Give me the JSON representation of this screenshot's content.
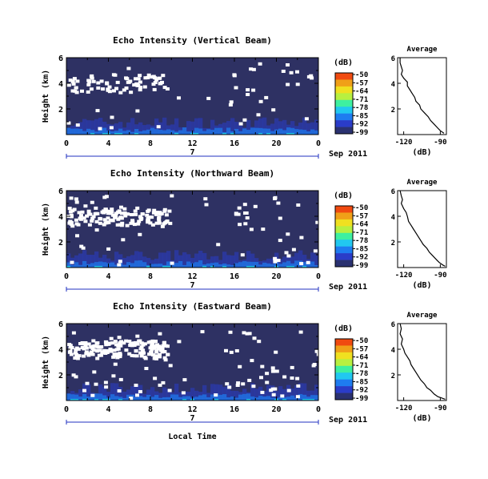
{
  "panels": [
    {
      "title": "Echo Intensity (Vertical Beam)",
      "ylabel": "Height (km)",
      "cbar_title": "(dB)",
      "avg_title": "Average",
      "avg_xlabel": "(dB)",
      "date_label": "Sep 2011",
      "day_label": "7"
    },
    {
      "title": "Echo Intensity (Northward Beam)",
      "ylabel": "Height (km)",
      "cbar_title": "(dB)",
      "avg_title": "Average",
      "avg_xlabel": "(dB)",
      "date_label": "Sep 2011",
      "day_label": "7"
    },
    {
      "title": "Echo Intensity (Eastward Beam)",
      "ylabel": "Height (km)",
      "cbar_title": "(dB)",
      "avg_title": "Average",
      "avg_xlabel": "(dB)",
      "date_label": "Sep 2011",
      "day_label": "7"
    }
  ],
  "xlabel": "Local Time",
  "chart_data": [
    {
      "type": "heatmap",
      "title": "Echo Intensity (Vertical Beam)",
      "xlabel": "",
      "ylabel": "Height (km)",
      "x_ticks": [
        "0",
        "4",
        "8",
        "12",
        "16",
        "20",
        "0"
      ],
      "xlim": [
        0,
        24
      ],
      "y_ticks": [
        "6",
        "4",
        "2"
      ],
      "ylim": [
        0,
        6
      ],
      "colorbar": {
        "label": "(dB)",
        "ticks": [
          "-50",
          "-57",
          "-64",
          "-71",
          "-78",
          "-85",
          "-92",
          "-99"
        ],
        "range": [
          -99,
          -50
        ]
      },
      "colors": [
        "#2a3170",
        "#2a3cc8",
        "#1e7cf0",
        "#21c8f0",
        "#3ef0a0",
        "#b8f040",
        "#f0e020",
        "#f0a018",
        "#f04a10"
      ],
      "background_color": "#2e3163",
      "features": {
        "near_ground_enhancement_km": [
          0,
          0.9
        ],
        "white_gaps_height_km": [
          3.6,
          4.6
        ]
      }
    },
    {
      "type": "line",
      "title": "Average",
      "xlabel": "(dB)",
      "x_ticks": [
        "-120",
        "-90"
      ],
      "y_ticks": [
        "6",
        "4",
        "2"
      ],
      "xlim": [
        -125,
        -85
      ],
      "ylim": [
        0,
        6
      ],
      "series": [
        {
          "x": [
            -123,
            -123,
            -122,
            -121,
            -122,
            -120,
            -117,
            -117,
            -115,
            -113,
            -111,
            -110,
            -107,
            -106,
            -103,
            -100,
            -98,
            -95,
            -92,
            -90,
            -87
          ],
          "y": [
            6,
            5.6,
            5.3,
            5.0,
            4.7,
            4.4,
            4.1,
            3.8,
            3.5,
            3.2,
            2.9,
            2.6,
            2.3,
            2.0,
            1.7,
            1.4,
            1.1,
            0.8,
            0.5,
            0.3,
            0.1
          ]
        }
      ]
    },
    {
      "type": "heatmap",
      "title": "Echo Intensity (Northward Beam)",
      "xlabel": "",
      "ylabel": "Height (km)",
      "x_ticks": [
        "0",
        "4",
        "8",
        "12",
        "16",
        "20",
        "0"
      ],
      "xlim": [
        0,
        24
      ],
      "y_ticks": [
        "6",
        "4",
        "2"
      ],
      "ylim": [
        0,
        6
      ],
      "colorbar": {
        "label": "(dB)",
        "ticks": [
          "-50",
          "-57",
          "-64",
          "-71",
          "-78",
          "-85",
          "-92",
          "-99"
        ],
        "range": [
          -99,
          -50
        ]
      },
      "background_color": "#2e3163"
    },
    {
      "type": "line",
      "title": "Average",
      "xlabel": "(dB)",
      "x_ticks": [
        "-120",
        "-90"
      ],
      "y_ticks": [
        "6",
        "4",
        "2"
      ],
      "xlim": [
        -125,
        -85
      ],
      "ylim": [
        0,
        6
      ],
      "series": [
        {
          "x": [
            -123,
            -122,
            -121,
            -122,
            -120,
            -118,
            -117,
            -116,
            -114,
            -112,
            -110,
            -108,
            -106,
            -104,
            -101,
            -99,
            -96,
            -93,
            -91,
            -88,
            -86
          ],
          "y": [
            6,
            5.6,
            5.3,
            5.0,
            4.6,
            4.3,
            4.0,
            3.6,
            3.3,
            3.0,
            2.7,
            2.4,
            2.1,
            1.8,
            1.5,
            1.2,
            0.9,
            0.6,
            0.4,
            0.2,
            0.1
          ]
        }
      ]
    },
    {
      "type": "heatmap",
      "title": "Echo Intensity (Eastward Beam)",
      "xlabel": "Local Time",
      "ylabel": "Height (km)",
      "x_ticks": [
        "0",
        "4",
        "8",
        "12",
        "16",
        "20",
        "0"
      ],
      "xlim": [
        0,
        24
      ],
      "y_ticks": [
        "6",
        "4",
        "2"
      ],
      "ylim": [
        0,
        6
      ],
      "colorbar": {
        "label": "(dB)",
        "ticks": [
          "-50",
          "-57",
          "-64",
          "-71",
          "-78",
          "-85",
          "-92",
          "-99"
        ],
        "range": [
          -99,
          -50
        ]
      },
      "background_color": "#2e3163"
    },
    {
      "type": "line",
      "title": "Average",
      "xlabel": "(dB)",
      "x_ticks": [
        "-120",
        "-90"
      ],
      "y_ticks": [
        "6",
        "4",
        "2"
      ],
      "xlim": [
        -125,
        -85
      ],
      "ylim": [
        0,
        6
      ],
      "series": [
        {
          "x": [
            -123,
            -122,
            -123,
            -121,
            -122,
            -120,
            -119,
            -117,
            -115,
            -114,
            -112,
            -110,
            -108,
            -106,
            -103,
            -101,
            -98,
            -95,
            -92,
            -89,
            -86
          ],
          "y": [
            6,
            5.6,
            5.2,
            4.8,
            4.4,
            4.0,
            3.7,
            3.4,
            3.1,
            2.8,
            2.5,
            2.2,
            1.9,
            1.6,
            1.3,
            1.0,
            0.8,
            0.5,
            0.3,
            0.2,
            0.1
          ]
        }
      ]
    }
  ]
}
